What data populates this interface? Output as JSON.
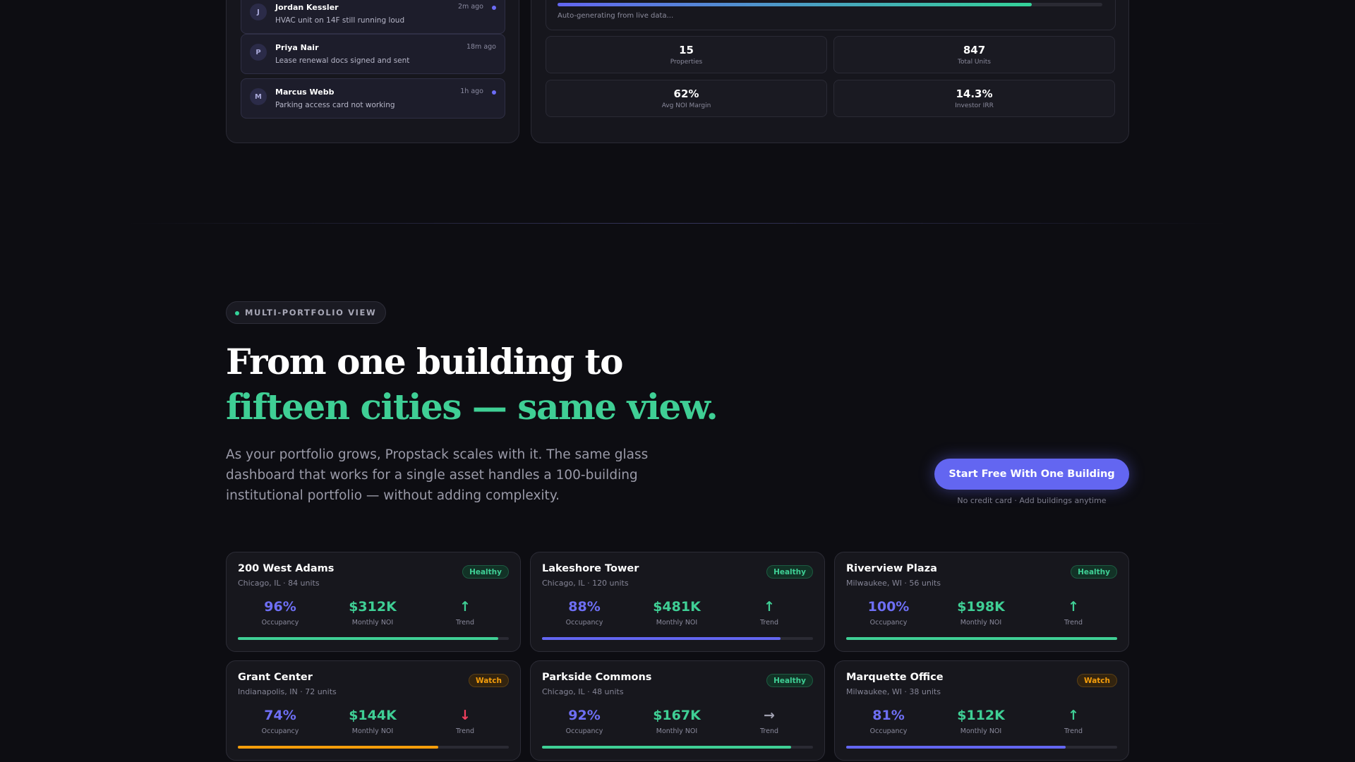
{
  "messages": [
    {
      "initial": "J",
      "name": "Jordan Kessler",
      "text": "HVAC unit on 14F still running loud",
      "time": "2m ago",
      "unread": true
    },
    {
      "initial": "P",
      "name": "Priya Nair",
      "text": "Lease renewal docs signed and sent",
      "time": "18m ago",
      "unread": false
    },
    {
      "initial": "M",
      "name": "Marcus Webb",
      "text": "Parking access card not working",
      "time": "1h ago",
      "unread": true
    }
  ],
  "report": {
    "progress": 0.87,
    "status_text": "Auto-generating from live data...",
    "stats": [
      {
        "value": "15",
        "label": "Properties"
      },
      {
        "value": "847",
        "label": "Total Units"
      },
      {
        "value": "62%",
        "label": "Avg NOI Margin"
      },
      {
        "value": "14.3%",
        "label": "Investor IRR"
      }
    ]
  },
  "section": {
    "pill": "MULTI-PORTFOLIO VIEW",
    "headline_line1": "From one building to",
    "headline_line2": "fifteen cities — same view.",
    "lead": "As your portfolio grows, Propstack scales with it. The same glass dashboard that works for a single asset handles a 100-building institutional portfolio — without adding complexity.",
    "cta": "Start Free With One Building",
    "cta_note": "No credit card · Add buildings anytime"
  },
  "labels": {
    "occupancy": "Occupancy",
    "noi": "Monthly NOI",
    "trend": "Trend"
  },
  "colors": {
    "indigo": "#6366f1",
    "green": "#3fcf95",
    "amber": "#f59e0b",
    "red": "#f43f5e"
  },
  "properties": [
    {
      "name": "200 West Adams",
      "location": "Chicago, IL · 84 units",
      "status": "Healthy",
      "occupancy": "96%",
      "noi": "$312K",
      "trend": "↑",
      "trend_icon": "arrow-up-icon",
      "bar": 0.96,
      "bar_color": "#3fcf95"
    },
    {
      "name": "Lakeshore Tower",
      "location": "Chicago, IL · 120 units",
      "status": "Healthy",
      "occupancy": "88%",
      "noi": "$481K",
      "trend": "↑",
      "trend_icon": "arrow-up-icon",
      "bar": 0.88,
      "bar_color": "#6366f1"
    },
    {
      "name": "Riverview Plaza",
      "location": "Milwaukee, WI · 56 units",
      "status": "Healthy",
      "occupancy": "100%",
      "noi": "$198K",
      "trend": "↑",
      "trend_icon": "arrow-up-icon",
      "bar": 1.0,
      "bar_color": "#3fcf95"
    },
    {
      "name": "Grant Center",
      "location": "Indianapolis, IN · 72 units",
      "status": "Watch",
      "occupancy": "74%",
      "noi": "$144K",
      "trend": "↓",
      "trend_icon": "arrow-down-icon",
      "bar": 0.74,
      "bar_color": "#f59e0b"
    },
    {
      "name": "Parkside Commons",
      "location": "Chicago, IL · 48 units",
      "status": "Healthy",
      "occupancy": "92%",
      "noi": "$167K",
      "trend": "→",
      "trend_icon": "arrow-right-icon",
      "bar": 0.92,
      "bar_color": "#3fcf95"
    },
    {
      "name": "Marquette Office",
      "location": "Milwaukee, WI · 38 units",
      "status": "Watch",
      "occupancy": "81%",
      "noi": "$112K",
      "trend": "↑",
      "trend_icon": "arrow-up-icon",
      "bar": 0.81,
      "bar_color": "#6366f1"
    }
  ]
}
